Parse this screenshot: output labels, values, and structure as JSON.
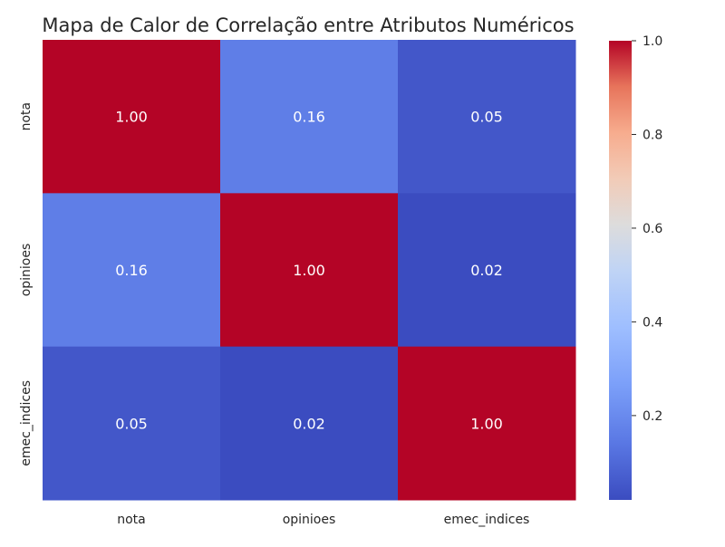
{
  "chart_data": {
    "type": "heatmap",
    "title": "Mapa de Calor de Correlação entre Atributos Numéricos",
    "xlabel": "",
    "ylabel": "",
    "x_categories": [
      "nota",
      "opinioes",
      "emec_indices"
    ],
    "y_categories": [
      "nota",
      "opinioes",
      "emec_indices"
    ],
    "values": [
      [
        1.0,
        0.16,
        0.05
      ],
      [
        0.16,
        1.0,
        0.02
      ],
      [
        0.05,
        0.02,
        1.0
      ]
    ],
    "annotation_format": "0.00",
    "colormap": "coolwarm",
    "colorbar": {
      "min": 0.02,
      "max": 1.0,
      "ticks": [
        0.2,
        0.4,
        0.6,
        0.8,
        1.0
      ],
      "tick_labels": [
        "0.2",
        "0.4",
        "0.6",
        "0.8",
        "1.0"
      ]
    },
    "grid": false
  }
}
